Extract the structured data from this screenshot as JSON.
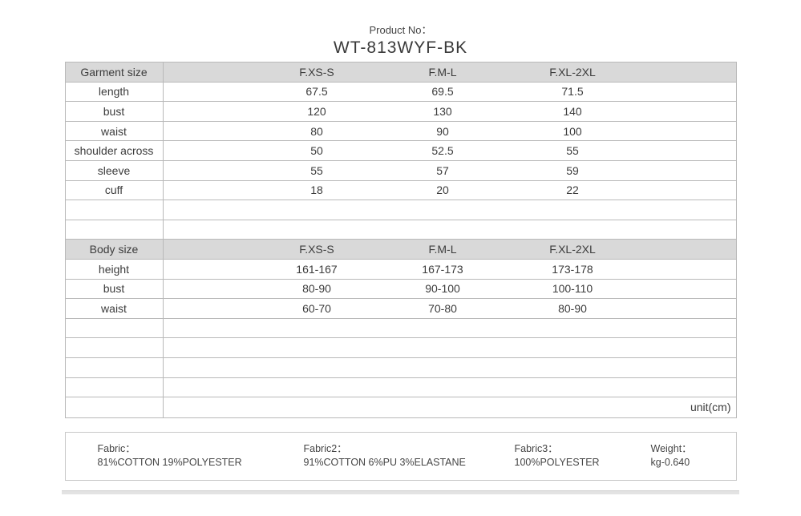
{
  "page": {
    "product_no_label": "Product No：",
    "product_no_value": "WT-813WYF-BK",
    "unit_label": "unit(cm)"
  },
  "colors": {
    "header_bg": "#d9d9d9",
    "border_col": "#b9b9b9",
    "text_col": "#3c3c3c",
    "box_border": "#c9c9c9",
    "bar_bg": "#e3e3e3"
  },
  "size_chart": {
    "columns": [
      "F.XS-S",
      "F.M-L",
      "F.XL-2XL"
    ],
    "sections": [
      {
        "title": "Garment size",
        "rows": [
          {
            "label": "length",
            "values": [
              "67.5",
              "69.5",
              "71.5"
            ]
          },
          {
            "label": "bust",
            "values": [
              "120",
              "130",
              "140"
            ]
          },
          {
            "label": "waist",
            "values": [
              "80",
              "90",
              "100"
            ]
          },
          {
            "label": "shoulder across",
            "values": [
              "50",
              "52.5",
              "55"
            ]
          },
          {
            "label": "sleeve",
            "values": [
              "55",
              "57",
              "59"
            ]
          },
          {
            "label": "cuff",
            "values": [
              "18",
              "20",
              "22"
            ]
          }
        ]
      },
      {
        "title": "Body size",
        "rows": [
          {
            "label": "height",
            "values": [
              "161-167",
              "167-173",
              "173-178"
            ]
          },
          {
            "label": "bust",
            "values": [
              "80-90",
              "90-100",
              "100-110"
            ]
          },
          {
            "label": "waist",
            "values": [
              "60-70",
              "70-80",
              "80-90"
            ]
          }
        ]
      }
    ]
  },
  "fabric_info": {
    "items": [
      {
        "label": "Fabric：",
        "value": "81%COTTON 19%POLYESTER"
      },
      {
        "label": "Fabric2：",
        "value": "91%COTTON 6%PU 3%ELASTANE"
      },
      {
        "label": "Fabric3：",
        "value": "100%POLYESTER"
      },
      {
        "label": "Weight：",
        "value": "kg-0.640"
      }
    ]
  }
}
